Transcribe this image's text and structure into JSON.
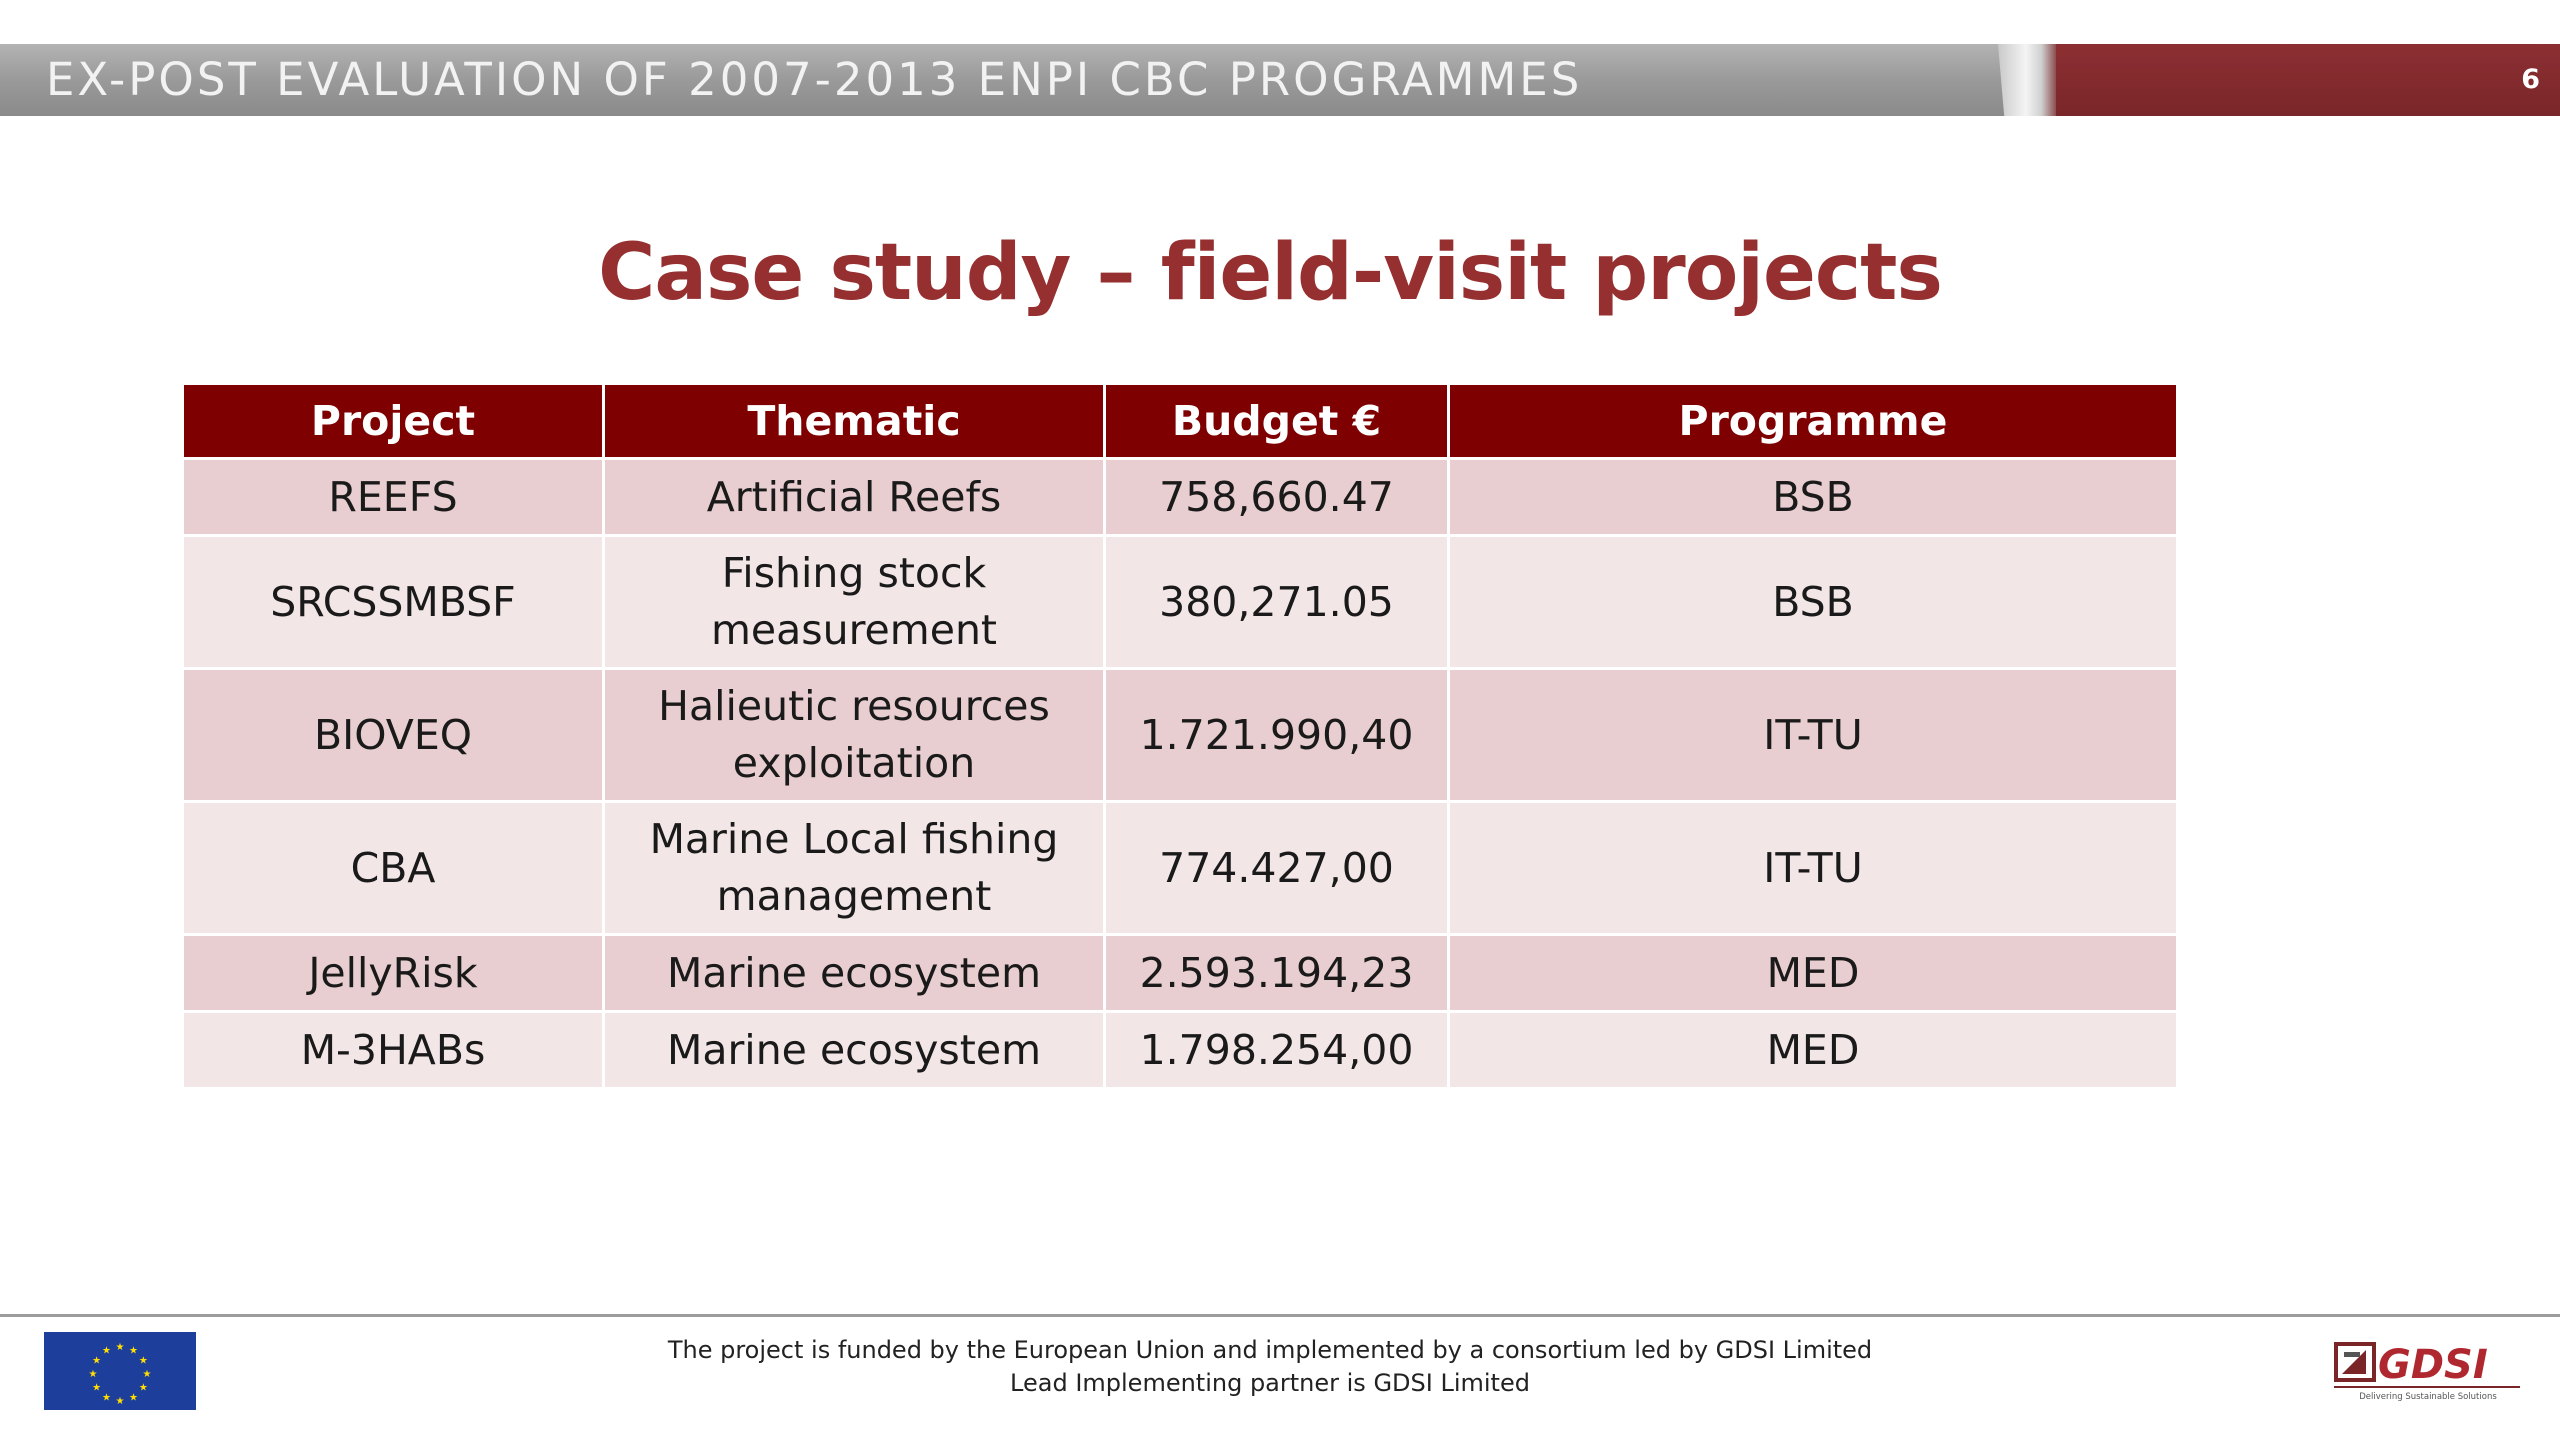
{
  "header": {
    "title": "EX-POST EVALUATION OF 2007-2013 ENPI CBC PROGRAMMES",
    "page_number": "6"
  },
  "slide": {
    "title": "Case study – field-visit projects"
  },
  "table": {
    "headers": [
      "Project",
      "Thematic",
      "Budget €",
      "Programme"
    ],
    "rows": [
      {
        "project": "REEFS",
        "thematic": "Artificial Reefs",
        "thematic_line2": "",
        "budget": "758,660.47",
        "programme": "BSB"
      },
      {
        "project": "SRCSSMBSF",
        "thematic": "Fishing stock",
        "thematic_line2": "measurement",
        "budget": "380,271.05",
        "programme": "BSB"
      },
      {
        "project": "BIOVEQ",
        "thematic": "Halieutic resources",
        "thematic_line2": "exploitation",
        "budget": "1.721.990,40",
        "programme": "IT-TU"
      },
      {
        "project": "CBA",
        "thematic": "Marine Local fishing",
        "thematic_line2": "management",
        "budget": "774.427,00",
        "programme": "IT-TU"
      },
      {
        "project": "JellyRisk",
        "thematic": "Marine ecosystem",
        "thematic_line2": "",
        "budget": "2.593.194,23",
        "programme": "MED"
      },
      {
        "project": "M-3HABs",
        "thematic": "Marine ecosystem",
        "thematic_line2": "",
        "budget": "1.798.254,00",
        "programme": "MED"
      }
    ]
  },
  "footer": {
    "line1": "The project is funded by the European Union and implemented by a consortium led by GDSI Limited",
    "line2": "Lead Implementing partner is GDSI Limited",
    "logo_text": "GDSI",
    "logo_tagline": "Delivering Sustainable Solutions"
  },
  "colors": {
    "header_gray": "#9a9a9a",
    "header_red": "#7a2629",
    "title_red": "#962f2f",
    "table_header": "#7e0000",
    "row_dark": "#e8ced0",
    "row_light": "#f3e6e7",
    "eu_blue": "#1d3f9b",
    "eu_star": "#ffdd00"
  }
}
